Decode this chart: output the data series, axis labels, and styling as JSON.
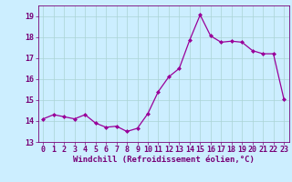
{
  "x": [
    0,
    1,
    2,
    3,
    4,
    5,
    6,
    7,
    8,
    9,
    10,
    11,
    12,
    13,
    14,
    15,
    16,
    17,
    18,
    19,
    20,
    21,
    22,
    23
  ],
  "y": [
    14.1,
    14.3,
    14.2,
    14.1,
    14.3,
    13.9,
    13.7,
    13.75,
    13.5,
    13.65,
    14.35,
    15.4,
    16.1,
    16.5,
    17.85,
    19.05,
    18.05,
    17.75,
    17.8,
    17.75,
    17.35,
    17.2,
    17.2,
    15.05
  ],
  "line_color": "#990099",
  "marker": "D",
  "marker_size": 2.0,
  "bg_color": "#cceeff",
  "grid_color": "#aad4d4",
  "xlabel": "Windchill (Refroidissement éolien,°C)",
  "xlabel_fontsize": 6.5,
  "tick_fontsize": 6.0,
  "ylim": [
    13,
    19.5
  ],
  "xlim": [
    -0.5,
    23.5
  ],
  "yticks": [
    13,
    14,
    15,
    16,
    17,
    18,
    19
  ],
  "xticks": [
    0,
    1,
    2,
    3,
    4,
    5,
    6,
    7,
    8,
    9,
    10,
    11,
    12,
    13,
    14,
    15,
    16,
    17,
    18,
    19,
    20,
    21,
    22,
    23
  ]
}
